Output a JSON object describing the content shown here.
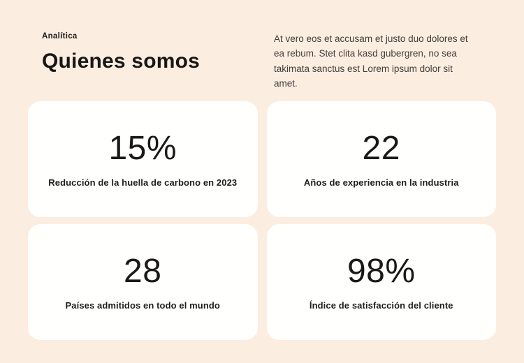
{
  "header": {
    "eyebrow": "Analítica",
    "title": "Quienes somos",
    "intro": "At vero eos et accusam et justo duo dolores et ea rebum. Stet clita kasd gubergren, no sea takimata sanctus est Lorem ipsum dolor sit amet."
  },
  "stats": {
    "cards": [
      {
        "value": "15%",
        "label": "Reducción de la huella de carbono en 2023"
      },
      {
        "value": "22",
        "label": "Años de experiencia en la industria"
      },
      {
        "value": "28",
        "label": "Países admitidos en todo el mundo"
      },
      {
        "value": "98%",
        "label": "Índice de satisfacción del cliente"
      }
    ]
  },
  "colors": {
    "background": "#fcede1",
    "card_background": "#fffffe",
    "heading_text": "#191716",
    "body_text": "#423e3b"
  }
}
